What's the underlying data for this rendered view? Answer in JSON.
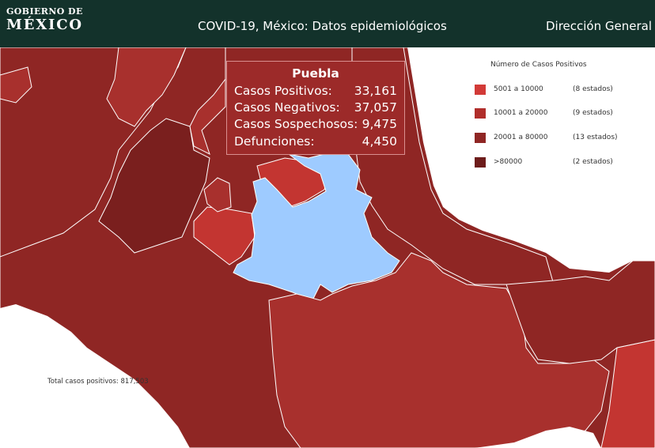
{
  "header": {
    "logo_line1": "GOBIERNO DE",
    "logo_line2": "MÉXICO",
    "title": "COVID-19, México: Datos epidemiológicos",
    "right_title": "Dirección General"
  },
  "tooltip": {
    "state": "Puebla",
    "rows": [
      {
        "label": "Casos Positivos:",
        "value": "33,161"
      },
      {
        "label": "Casos Negativos:",
        "value": "37,057"
      },
      {
        "label": "Casos Sospechosos:",
        "value": "9,475"
      },
      {
        "label": "Defunciones:",
        "value": "4,450"
      }
    ]
  },
  "legend": {
    "title": "Número de Casos Positivos",
    "items": [
      {
        "range": "5001 a  10000",
        "count": "(8 estados)",
        "color": "#d23a37"
      },
      {
        "range": "10001 a  20000",
        "count": "(9 estados)",
        "color": "#b02e2b"
      },
      {
        "range": "20001 a  80000",
        "count": "(13 estados)",
        "color": "#8f2624"
      },
      {
        "range": ">80000",
        "count": "(2 estados)",
        "color": "#6d1c1b"
      }
    ]
  },
  "map": {
    "highlight_state": "Puebla",
    "highlight_color": "#9ecbff",
    "state_colors": {
      "c1": "#8f2624",
      "c2": "#a8302d",
      "c3": "#c33531",
      "c4": "#7a1f1e"
    }
  },
  "footer": {
    "total_label": "Total casos positivos: 817,503"
  }
}
